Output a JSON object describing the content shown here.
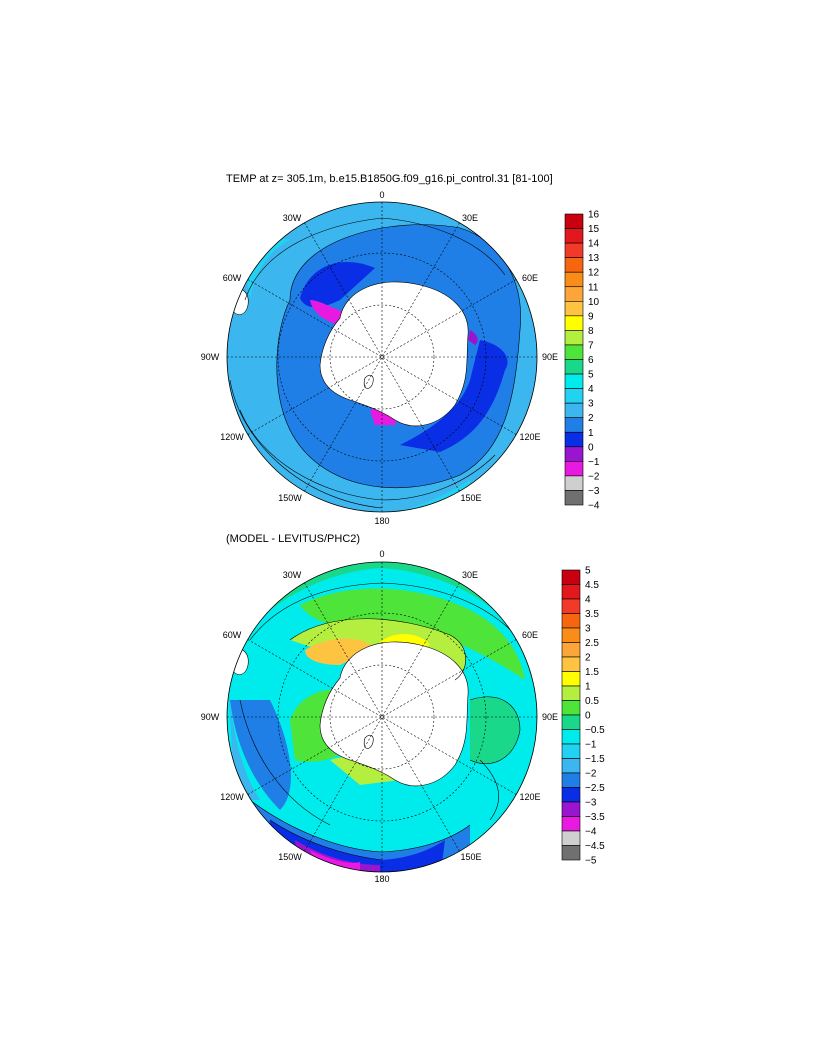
{
  "top_panel": {
    "title": "TEMP at z= 305.1m, b.e15.B1850G.f09_g16.pi_control.31 [81-100]",
    "grid_labels": {
      "top": "0",
      "top_right": "30E",
      "right_upper": "60E",
      "right": "90E",
      "right_lower": "120E",
      "bottom_right": "150E",
      "bottom": "180",
      "bottom_left": "150W",
      "left_lower": "120W",
      "left": "90W",
      "left_upper": "60W",
      "top_left": "30W"
    },
    "colorbar": {
      "labels": [
        "16",
        "15",
        "14",
        "13",
        "12",
        "11",
        "10",
        "9",
        "8",
        "7",
        "6",
        "5",
        "4",
        "3",
        "2",
        "1",
        "0",
        "−1",
        "−2",
        "−3",
        "−4"
      ],
      "colors": [
        "#c8000f",
        "#e2181c",
        "#f23a2a",
        "#f7660f",
        "#fa8c18",
        "#fca63a",
        "#fdc341",
        "#ffff00",
        "#b4ee3e",
        "#4ee43a",
        "#19d88a",
        "#00ecec",
        "#22d2f2",
        "#3cb6ee",
        "#1f7fe6",
        "#0a2ee6",
        "#9a15cf",
        "#e81ae2",
        "#cfcfcf",
        "#707070"
      ]
    }
  },
  "bottom_panel": {
    "title": "(MODEL - LEVITUS/PHC2)",
    "grid_labels": {
      "top": "0",
      "top_right": "30E",
      "right_upper": "60E",
      "right": "90E",
      "right_lower": "120E",
      "bottom_right": "150E",
      "bottom": "180",
      "bottom_left": "150W",
      "left_lower": "120W",
      "left": "90W",
      "left_upper": "60W",
      "top_left": "30W"
    },
    "colorbar": {
      "labels": [
        "5",
        "4.5",
        "4",
        "3.5",
        "3",
        "2.5",
        "2",
        "1.5",
        "1",
        "0.5",
        "0",
        "−0.5",
        "−1",
        "−1.5",
        "−2",
        "−2.5",
        "−3",
        "−3.5",
        "−4",
        "−4.5",
        "−5"
      ],
      "colors": [
        "#c8000f",
        "#e2181c",
        "#f23a2a",
        "#f7660f",
        "#fa8c18",
        "#fca63a",
        "#fdc341",
        "#ffff00",
        "#b4ee3e",
        "#4ee43a",
        "#19d88a",
        "#00ecec",
        "#22d2f2",
        "#3cb6ee",
        "#1f7fe6",
        "#0a2ee6",
        "#9a15cf",
        "#e81ae2",
        "#cfcfcf",
        "#707070"
      ]
    }
  }
}
